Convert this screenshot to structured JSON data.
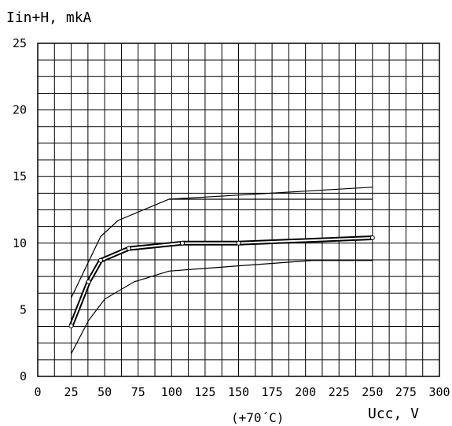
{
  "chart_data": {
    "type": "line",
    "ylabel": "Iin+H, mkA",
    "xlabel": "Ucc, V",
    "annotation": "(+70´C)",
    "xlim": [
      0,
      300
    ],
    "ylim": [
      0,
      25
    ],
    "x_ticks": [
      "0",
      "25",
      "50",
      "75",
      "100",
      "125",
      "150",
      "175",
      "200",
      "225",
      "250",
      "275",
      "300"
    ],
    "y_ticks": [
      "0",
      "5",
      "10",
      "15",
      "20",
      "25"
    ],
    "grid": true,
    "series": [
      {
        "style": "upper-bound",
        "x": [
          25,
          47,
          60,
          98,
          250
        ],
        "y": [
          5.9,
          10.5,
          11.7,
          13.3,
          14.2
        ]
      },
      {
        "style": "upper-bound-flat",
        "x": [
          98,
          250
        ],
        "y": [
          13.3,
          13.3
        ]
      },
      {
        "style": "typical",
        "x": [
          25,
          38,
          47,
          68,
          108,
          150,
          250
        ],
        "y": [
          3.8,
          7.1,
          8.7,
          9.6,
          10.0,
          10.0,
          10.4
        ]
      },
      {
        "style": "lower-bound",
        "x": [
          25,
          38,
          50,
          72,
          98,
          150,
          205,
          250
        ],
        "y": [
          1.7,
          4.2,
          5.8,
          7.1,
          7.9,
          8.3,
          8.7,
          8.7
        ]
      }
    ],
    "colors": {
      "line": "#000000",
      "background": "#ffffff"
    }
  }
}
